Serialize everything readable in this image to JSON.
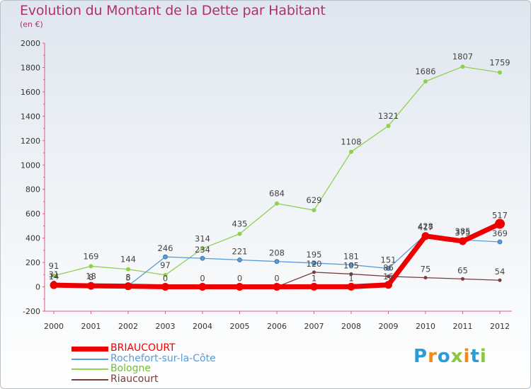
{
  "title": "Evolution du Montant de la Dette par Habitant",
  "unit_label": "(en €)",
  "logo": {
    "text": "Proxiti",
    "letter_colors": [
      "#2a9bd6",
      "#f08a1a",
      "#2a9bd6",
      "#8bc63f",
      "#f08a1a",
      "#2a9bd6",
      "#8bc63f"
    ]
  },
  "chart_data": {
    "type": "line",
    "title": "Evolution du Montant de la Dette par Habitant",
    "ylabel": "(en €)",
    "xlabel": "",
    "ylim": [
      -200,
      2000
    ],
    "y_ticks": [
      -200,
      0,
      200,
      400,
      600,
      800,
      1000,
      1200,
      1400,
      1600,
      1800,
      2000
    ],
    "categories": [
      "2000",
      "2001",
      "2002",
      "2003",
      "2004",
      "2005",
      "2006",
      "2007",
      "2008",
      "2009",
      "2010",
      "2011",
      "2012"
    ],
    "grid": false,
    "legend_position": "bottom-left",
    "series": [
      {
        "name": "BRIAUCOURT",
        "color": "#ee0000",
        "values": [
          14,
          8,
          5,
          0,
          0,
          0,
          0,
          1,
          1,
          16,
          417,
          375,
          517
        ],
        "labels": [
          "14",
          "8",
          "5",
          "0",
          "0",
          "0",
          "0",
          "1",
          "1",
          "16",
          "417",
          "375",
          "517"
        ]
      },
      {
        "name": "Rochefort-sur-la-Côte",
        "color": "#5b9bd5",
        "values": [
          31,
          18,
          8,
          246,
          234,
          221,
          208,
          195,
          181,
          151,
          428,
          385,
          369
        ],
        "labels": [
          "31",
          "18",
          "8",
          "246",
          "234",
          "221",
          "208",
          "195",
          "181",
          "151",
          "428",
          "385",
          "369"
        ]
      },
      {
        "name": "Bologne",
        "color": "#8fd14f",
        "values": [
          91,
          169,
          144,
          97,
          314,
          435,
          684,
          629,
          1108,
          1321,
          1686,
          1807,
          1759
        ],
        "labels": [
          "91",
          "169",
          "144",
          "97",
          "314",
          "435",
          "684",
          "629",
          "1108",
          "1321",
          "1686",
          "1807",
          "1759"
        ]
      },
      {
        "name": "Riaucourt",
        "color": "#7a3b3b",
        "values": [
          0,
          0,
          0,
          0,
          0,
          0,
          0,
          120,
          105,
          86,
          75,
          65,
          54
        ],
        "labels": [
          "",
          "",
          "",
          "",
          "",
          "",
          "",
          "120",
          "105",
          "86",
          "75",
          "65",
          "54"
        ]
      }
    ]
  }
}
